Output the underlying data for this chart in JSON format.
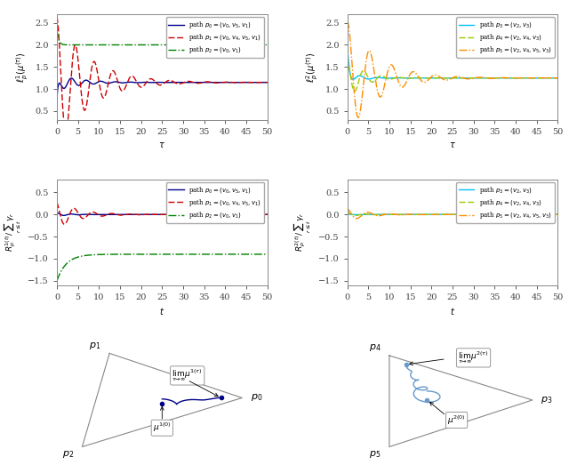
{
  "top_left": {
    "legend": [
      "path $p_0 = (v_0, v_5, v_1)$",
      "path $p_1 = (v_0, v_4, v_5, v_1)$",
      "path $p_2 = (v_0, v_1)$"
    ],
    "colors": [
      "#00008B",
      "#CC0000",
      "#008000"
    ],
    "styles": [
      "-",
      "--",
      "-."
    ],
    "ylabel": "$\\ell_p^1(\\mu^{(\\tau)})$",
    "xlabel": "$\\tau$",
    "ylim": [
      0.3,
      2.7
    ],
    "xlim": [
      0,
      50
    ]
  },
  "top_right": {
    "legend": [
      "path $p_3 = (v_2, v_3)$",
      "path $p_4 = (v_2, v_4, v_3)$",
      "path $p_5 = (v_2, v_4, v_5, v_3)$"
    ],
    "colors": [
      "#00BFFF",
      "#99CC00",
      "#FF8C00"
    ],
    "styles": [
      "-",
      "--",
      "-."
    ],
    "ylabel": "$\\ell_p^2(\\mu^{(\\tau)})$",
    "xlabel": "$\\tau$",
    "ylim": [
      0.3,
      2.7
    ],
    "xlim": [
      0,
      50
    ]
  },
  "mid_left": {
    "legend": [
      "path $p_0 = (v_0, v_5, v_1)$",
      "path $p_1 = (v_0, v_4, v_5, v_1)$",
      "path $p_2 = (v_0, v_1)$"
    ],
    "colors": [
      "#00008B",
      "#CC0000",
      "#008000"
    ],
    "styles": [
      "-",
      "--",
      "-."
    ],
    "ylabel": "$R_p^{1(t)}/\\sum_{r \\leq t} \\gamma_r$",
    "xlabel": "$t$",
    "ylim": [
      -1.6,
      0.8
    ],
    "xlim": [
      0,
      50
    ]
  },
  "mid_right": {
    "legend": [
      "path $p_3 = (v_2, v_3)$",
      "path $p_4 = (v_2, v_4, v_3)$",
      "path $p_5 = (v_2, v_4, v_5, v_3)$"
    ],
    "colors": [
      "#00BFFF",
      "#99CC00",
      "#FF8C00"
    ],
    "styles": [
      "-",
      "--",
      "-."
    ],
    "ylabel": "$R_p^{2(t)}/\\sum_{r \\leq t} \\gamma_r$",
    "xlabel": "$t$",
    "ylim": [
      -1.6,
      0.8
    ],
    "xlim": [
      0,
      50
    ]
  }
}
